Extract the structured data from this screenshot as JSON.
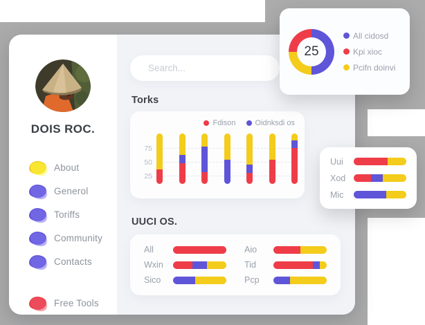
{
  "colors": {
    "red": "#ee3d49",
    "blue": "#5f55d8",
    "yellow": "#f3cc1c",
    "background_gray": "#ababab"
  },
  "sidebar": {
    "profile_name": "DOIS ROC.",
    "menu": [
      {
        "label": "About",
        "color": "yellow",
        "icon": "blob"
      },
      {
        "label": "Generol",
        "color": "blue",
        "icon": "blob"
      },
      {
        "label": "Toriffs",
        "color": "blue",
        "icon": "blob"
      },
      {
        "label": "Community",
        "color": "blue",
        "icon": "blob"
      },
      {
        "label": "Contacts",
        "color": "blue",
        "icon": "blob"
      }
    ],
    "footer_menu": [
      {
        "label": "Free Tools",
        "color": "red",
        "icon": "blob"
      }
    ]
  },
  "search": {
    "placeholder": "Search..."
  },
  "chart_data": [
    {
      "id": "donut",
      "type": "pie",
      "center_label": "25",
      "legend_position": "right",
      "slices": [
        {
          "label": "All cidosd",
          "color": "blue",
          "value": 50,
          "start_deg": 0,
          "end_deg": 180
        },
        {
          "label": "Kpi xioc",
          "color": "red",
          "value": 25,
          "start_deg": 270,
          "end_deg": 360
        },
        {
          "label": "Pcifn doinvi",
          "color": "yellow",
          "value": 25,
          "start_deg": 180,
          "end_deg": 270
        }
      ]
    },
    {
      "id": "torks",
      "type": "bar",
      "stacked": true,
      "title": "Torks",
      "categories": [
        "",
        "",
        "",
        "",
        "",
        "",
        ""
      ],
      "series": [
        {
          "name": "Fdison",
          "color": "red",
          "in_legend": true,
          "values": [
            30,
            43,
            24,
            0,
            23,
            50,
            74
          ]
        },
        {
          "name": "Oidnksdi os",
          "color": "blue",
          "in_legend": true,
          "values": [
            0,
            16,
            52,
            50,
            16,
            0,
            15
          ]
        },
        {
          "name": "",
          "color": "yellow",
          "in_legend": false,
          "values": [
            73,
            44,
            27,
            53,
            64,
            53,
            14
          ]
        }
      ],
      "yticks": [
        25,
        50,
        75
      ],
      "ylim": [
        0,
        110
      ],
      "grid": "horizontal-dashed",
      "x_labels_shown": false
    },
    {
      "id": "uuci",
      "type": "bar",
      "orientation": "horizontal",
      "stacked": true,
      "title": "UUCI OS.",
      "rows": [
        {
          "label": "All",
          "segments": [
            [
              "red",
              100
            ]
          ]
        },
        {
          "label": "Wxin",
          "segments": [
            [
              "red",
              37
            ],
            [
              "blue",
              27
            ],
            [
              "yellow",
              36
            ]
          ]
        },
        {
          "label": "Sico",
          "segments": [
            [
              "blue",
              42
            ],
            [
              "yellow",
              58
            ]
          ]
        },
        {
          "label": "Aio",
          "segments": [
            [
              "red",
              51
            ],
            [
              "yellow",
              49
            ]
          ]
        },
        {
          "label": "Tid",
          "segments": [
            [
              "red",
              74
            ],
            [
              "blue",
              13
            ],
            [
              "yellow",
              13
            ]
          ]
        },
        {
          "label": "Pcp",
          "segments": [
            [
              "blue",
              31
            ],
            [
              "yellow",
              69
            ]
          ]
        }
      ]
    },
    {
      "id": "mini",
      "type": "bar",
      "orientation": "horizontal",
      "stacked": true,
      "rows": [
        {
          "label": "Uui",
          "segments": [
            [
              "red",
              64
            ],
            [
              "yellow",
              36
            ]
          ]
        },
        {
          "label": "Xod",
          "segments": [
            [
              "red",
              33
            ],
            [
              "blue",
              22
            ],
            [
              "yellow",
              45
            ]
          ]
        },
        {
          "label": "Mic",
          "segments": [
            [
              "blue",
              62
            ],
            [
              "yellow",
              38
            ]
          ]
        }
      ]
    }
  ]
}
